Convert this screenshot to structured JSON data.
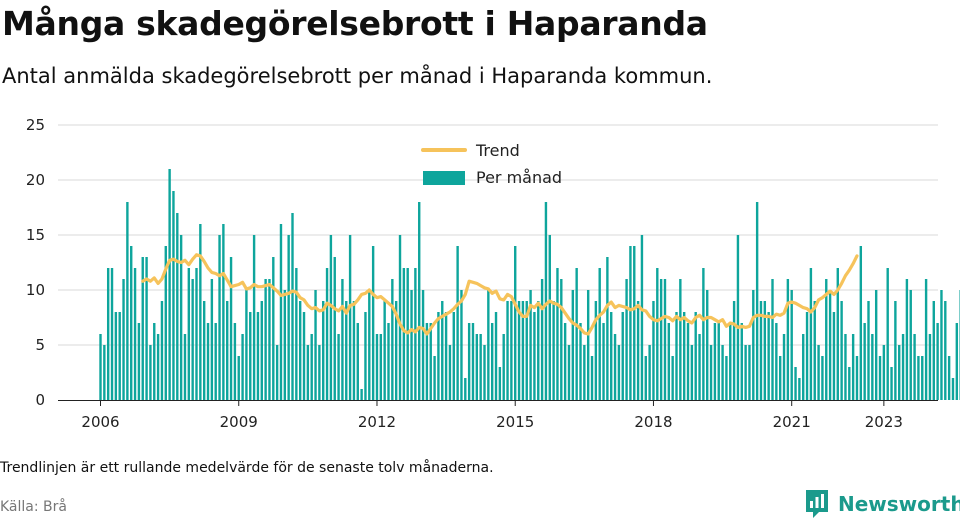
{
  "page": {
    "title": "Många skadegörelsebrott i Haparanda",
    "subtitle": "Antal anmälda skadegörelsebrott per månad i Haparanda kommun.",
    "note": "Trendlinjen är ett rullande medelvärde för de senaste tolv månaderna.",
    "source": "Källa: Brå",
    "brand": "Newsworthy"
  },
  "colors": {
    "bars": "#0ea59c",
    "trend": "#f6c35b",
    "grid": "#d9d9d9",
    "brand": "#1b9a8c"
  },
  "chart_data": {
    "type": "bar",
    "title": "",
    "xlabel": "",
    "ylabel": "",
    "x_start": "2006-01",
    "ylim": [
      0,
      25
    ],
    "yticks": [
      0,
      5,
      10,
      15,
      20,
      25
    ],
    "xtick_labels": [
      "2006",
      "2009",
      "2012",
      "2015",
      "2018",
      "2021",
      "2023"
    ],
    "grid": true,
    "legend_position": "top-center",
    "series": [
      {
        "name": "Per månad",
        "type": "bar",
        "values": [
          6,
          5,
          12,
          12,
          8,
          8,
          11,
          18,
          14,
          12,
          7,
          13,
          13,
          5,
          7,
          6,
          9,
          14,
          21,
          19,
          17,
          15,
          6,
          12,
          11,
          12,
          16,
          9,
          7,
          11,
          7,
          15,
          16,
          9,
          13,
          7,
          4,
          6,
          10,
          8,
          15,
          8,
          9,
          11,
          11,
          13,
          5,
          16,
          10,
          15,
          17,
          12,
          9,
          8,
          5,
          6,
          10,
          5,
          9,
          12,
          15,
          13,
          6,
          11,
          9,
          15,
          9,
          7,
          1,
          8,
          10,
          14,
          6,
          6,
          9,
          7,
          11,
          9,
          15,
          12,
          12,
          10,
          12,
          18,
          10,
          7,
          7,
          4,
          8,
          9,
          8,
          5,
          8,
          14,
          10,
          2,
          7,
          7,
          6,
          6,
          5,
          10,
          7,
          8,
          3,
          6,
          9,
          9,
          14,
          9,
          9,
          9,
          10,
          8,
          9,
          11,
          18,
          15,
          9,
          12,
          11,
          7,
          5,
          10,
          12,
          7,
          5,
          10,
          4,
          9,
          12,
          7,
          13,
          8,
          6,
          5,
          8,
          11,
          14,
          14,
          9,
          15,
          4,
          5,
          9,
          12,
          11,
          11,
          7,
          4,
          8,
          11,
          8,
          7,
          5,
          8,
          6,
          12,
          10,
          5,
          7,
          7,
          5,
          4,
          7,
          9,
          15,
          7,
          5,
          5,
          10,
          18,
          9,
          9,
          8,
          11,
          7,
          4,
          6,
          11,
          10,
          3,
          2,
          6,
          8,
          12,
          9,
          5,
          4,
          11,
          10,
          8,
          12,
          9,
          6,
          3,
          6,
          4,
          14,
          7,
          9,
          6,
          10,
          4,
          5,
          12,
          3,
          9,
          5,
          6,
          11,
          10,
          6,
          4,
          4,
          11,
          6,
          9,
          7,
          10,
          9,
          4,
          2,
          7,
          10,
          5,
          10,
          6,
          10,
          16,
          4,
          8,
          4,
          10,
          5,
          10,
          4,
          12,
          6,
          8,
          12,
          5,
          11,
          4,
          16,
          4,
          6,
          8,
          5,
          2,
          8,
          5,
          7,
          5,
          13,
          14,
          17,
          19,
          14,
          10,
          8,
          10,
          13,
          10,
          9,
          13,
          13,
          12,
          22
        ]
      },
      {
        "name": "Trend",
        "type": "line",
        "start_index": 11,
        "values": [
          10.8,
          11.0,
          10.8,
          11.1,
          10.6,
          11.0,
          11.9,
          12.7,
          12.8,
          12.6,
          12.5,
          12.7,
          12.3,
          12.8,
          13.2,
          13.1,
          12.6,
          12.0,
          11.6,
          11.5,
          11.3,
          11.5,
          10.9,
          10.3,
          10.4,
          10.5,
          10.7,
          10.1,
          10.2,
          10.5,
          10.3,
          10.3,
          10.4,
          10.5,
          10.2,
          9.9,
          9.5,
          9.6,
          9.7,
          9.9,
          9.8,
          9.3,
          9.1,
          8.6,
          8.3,
          8.4,
          8.1,
          8.2,
          8.8,
          8.6,
          8.3,
          8.1,
          8.5,
          7.9,
          8.6,
          8.7,
          9.1,
          9.6,
          9.7,
          10.0,
          9.6,
          9.3,
          9.4,
          9.1,
          8.8,
          8.5,
          7.8,
          6.9,
          6.3,
          6.1,
          6.4,
          6.2,
          6.6,
          6.5,
          6.0,
          6.5,
          7.0,
          7.4,
          7.6,
          7.8,
          8.0,
          8.3,
          8.7,
          9.0,
          9.6,
          10.8,
          10.7,
          10.6,
          10.4,
          10.2,
          10.1,
          9.7,
          9.9,
          9.2,
          9.1,
          9.6,
          9.4,
          8.7,
          8.0,
          7.6,
          7.6,
          8.6,
          8.4,
          8.8,
          8.3,
          8.7,
          9.0,
          8.8,
          8.7,
          8.4,
          7.9,
          7.4,
          7.0,
          6.8,
          6.5,
          6.1,
          6.0,
          6.6,
          7.3,
          7.7,
          8.0,
          8.6,
          8.9,
          8.4,
          8.6,
          8.5,
          8.4,
          8.2,
          8.3,
          8.6,
          8.2,
          8.1,
          7.6,
          7.3,
          7.2,
          7.4,
          7.6,
          7.5,
          7.2,
          7.6,
          7.3,
          7.5,
          7.2,
          7.0,
          7.5,
          7.7,
          7.3,
          7.5,
          7.5,
          7.3,
          7.1,
          7.3,
          6.7,
          7.0,
          6.9,
          6.6,
          6.7,
          6.6,
          6.7,
          7.5,
          7.7,
          7.7,
          7.6,
          7.6,
          7.5,
          7.8,
          7.7,
          7.9,
          8.8,
          8.9,
          8.8,
          8.6,
          8.4,
          8.3,
          8.0,
          8.4,
          9.1,
          9.3,
          9.6,
          9.9,
          9.6,
          10.0,
          10.6,
          11.3,
          11.8,
          12.4,
          13.1
        ]
      }
    ]
  }
}
